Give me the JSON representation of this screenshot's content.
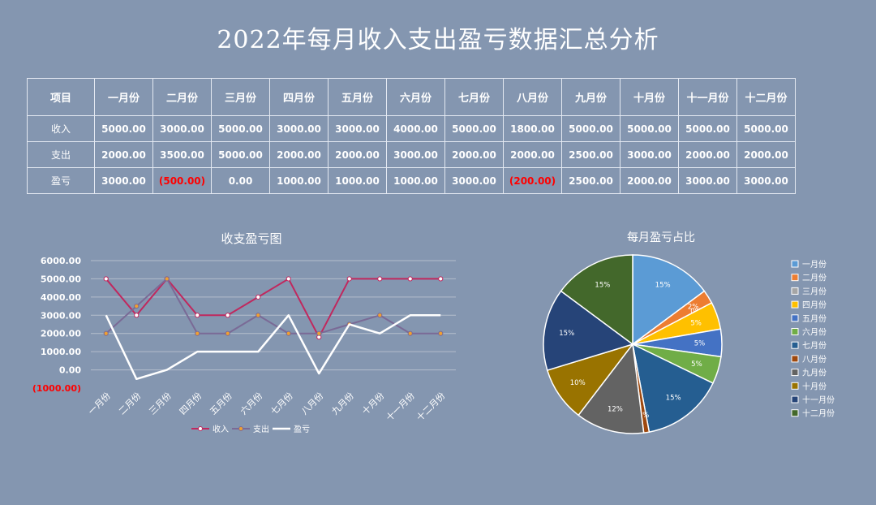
{
  "title": "2022年每月收入支出盈亏数据汇总分析",
  "table": {
    "header_label": "项目",
    "months": [
      "一月份",
      "二月份",
      "三月份",
      "四月份",
      "五月份",
      "六月份",
      "七月份",
      "八月份",
      "九月份",
      "十月份",
      "十一月份",
      "十二月份"
    ],
    "rows": [
      {
        "label": "收入",
        "values": [
          "5000.00",
          "3000.00",
          "5000.00",
          "3000.00",
          "3000.00",
          "4000.00",
          "5000.00",
          "1800.00",
          "5000.00",
          "5000.00",
          "5000.00",
          "5000.00"
        ]
      },
      {
        "label": "支出",
        "values": [
          "2000.00",
          "3500.00",
          "5000.00",
          "2000.00",
          "2000.00",
          "3000.00",
          "2000.00",
          "2000.00",
          "2500.00",
          "3000.00",
          "2000.00",
          "2000.00"
        ]
      },
      {
        "label": "盈亏",
        "values": [
          "3000.00",
          "(500.00)",
          "0.00",
          "1000.00",
          "1000.00",
          "1000.00",
          "3000.00",
          "(200.00)",
          "2500.00",
          "2000.00",
          "3000.00",
          "3000.00"
        ]
      }
    ]
  },
  "colors": {
    "income": "#c0285e",
    "expense": "#7a6a96",
    "profit": "#ffffff",
    "negative": "#ff0000",
    "grid": "#b3bdcc"
  },
  "chart_data": [
    {
      "type": "line",
      "title": "收支盈亏图",
      "categories": [
        "一月份",
        "二月份",
        "三月份",
        "四月份",
        "五月份",
        "六月份",
        "七月份",
        "八月份",
        "九月份",
        "十月份",
        "十一月份",
        "十二月份"
      ],
      "series": [
        {
          "name": "收入",
          "values": [
            5000,
            3000,
            5000,
            3000,
            3000,
            4000,
            5000,
            1800,
            5000,
            5000,
            5000,
            5000
          ]
        },
        {
          "name": "支出",
          "values": [
            2000,
            3500,
            5000,
            2000,
            2000,
            3000,
            2000,
            2000,
            2500,
            3000,
            2000,
            2000
          ]
        },
        {
          "name": "盈亏",
          "values": [
            3000,
            -500,
            0,
            1000,
            1000,
            1000,
            3000,
            -200,
            2500,
            2000,
            3000,
            3000
          ]
        }
      ],
      "ylim": [
        -1000,
        6000
      ],
      "yticks": [
        "6000.00",
        "5000.00",
        "4000.00",
        "3000.00",
        "2000.00",
        "1000.00",
        "0.00",
        "(1000.00)"
      ],
      "yticks_values": [
        6000,
        5000,
        4000,
        3000,
        2000,
        1000,
        0,
        -1000
      ],
      "grid": true,
      "legend": "bottom"
    },
    {
      "type": "pie",
      "title": "每月盈亏占比",
      "categories": [
        "一月份",
        "二月份",
        "三月份",
        "四月份",
        "五月份",
        "六月份",
        "七月份",
        "八月份",
        "九月份",
        "十月份",
        "十一月份",
        "十二月份"
      ],
      "values": [
        3000,
        500,
        0,
        1000,
        1000,
        1000,
        3000,
        200,
        2500,
        2000,
        3000,
        3000
      ],
      "labels": [
        "15%",
        "2%",
        "0%",
        "5%",
        "5%",
        "5%",
        "15%",
        "1%",
        "12%",
        "10%",
        "15%",
        "15%"
      ],
      "slice_colors": [
        "#5b9bd5",
        "#ed7d31",
        "#a5a5a5",
        "#ffc000",
        "#4472c4",
        "#70ad47",
        "#255e91",
        "#9e480e",
        "#636363",
        "#997300",
        "#264478",
        "#43682b"
      ],
      "legend": "right"
    }
  ]
}
